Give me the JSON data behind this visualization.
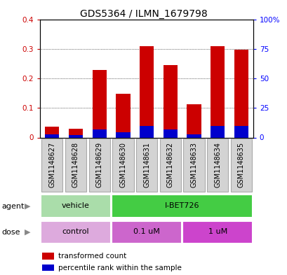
{
  "title": "GDS5364 / ILMN_1679798",
  "samples": [
    "GSM1148627",
    "GSM1148628",
    "GSM1148629",
    "GSM1148630",
    "GSM1148631",
    "GSM1148632",
    "GSM1148633",
    "GSM1148634",
    "GSM1148635"
  ],
  "red_values": [
    0.037,
    0.03,
    0.228,
    0.148,
    0.31,
    0.245,
    0.113,
    0.308,
    0.298
  ],
  "blue_values": [
    0.01,
    0.008,
    0.028,
    0.018,
    0.038,
    0.028,
    0.01,
    0.038,
    0.038
  ],
  "ylim_left": [
    0,
    0.4
  ],
  "ylim_right": [
    0,
    100
  ],
  "yticks_left": [
    0.0,
    0.1,
    0.2,
    0.3,
    0.4
  ],
  "ytick_labels_left": [
    "0",
    "0.1",
    "0.2",
    "0.3",
    "0.4"
  ],
  "yticks_right": [
    0,
    25,
    50,
    75,
    100
  ],
  "ytick_labels_right": [
    "0",
    "25",
    "50",
    "75",
    "100%"
  ],
  "bar_width": 0.6,
  "red_color": "#cc0000",
  "blue_color": "#0000cc",
  "agent_groups": [
    {
      "label": "vehicle",
      "start": 0,
      "end": 3,
      "color": "#aaddaa"
    },
    {
      "label": "I-BET726",
      "start": 3,
      "end": 9,
      "color": "#44cc44"
    }
  ],
  "dose_groups": [
    {
      "label": "control",
      "start": 0,
      "end": 3,
      "color": "#ddaadd"
    },
    {
      "label": "0.1 uM",
      "start": 3,
      "end": 6,
      "color": "#cc66cc"
    },
    {
      "label": "1 uM",
      "start": 6,
      "end": 9,
      "color": "#cc44cc"
    }
  ],
  "agent_label": "agent",
  "dose_label": "dose",
  "legend_red": "transformed count",
  "legend_blue": "percentile rank within the sample",
  "title_fontsize": 10,
  "tick_fontsize": 7.5,
  "sample_fontsize": 7,
  "bar_area_bg": "#ffffff",
  "sample_box_color": "#d3d3d3",
  "sample_box_edge": "#aaaaaa"
}
